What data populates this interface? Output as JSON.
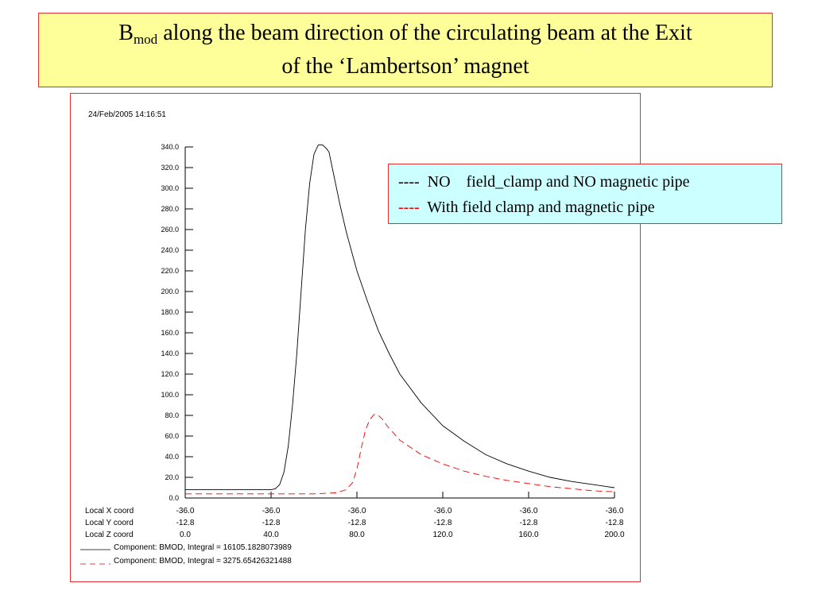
{
  "title": {
    "main_symbol": "B",
    "subscript": "mod",
    "line1_rest": " along the beam direction of the circulating beam at the Exit",
    "line2": "of the ‘Lambertson’ magnet"
  },
  "timestamp": "24/Feb/2005 14:16:51",
  "legend": {
    "items": [
      {
        "dash": "----",
        "label": "NO    field_clamp and NO magnetic pipe",
        "color": "#000000"
      },
      {
        "dash": "----",
        "label": "With field clamp and magnetic pipe",
        "color": "#ee0000"
      }
    ]
  },
  "coord_rows": [
    {
      "label": "Local X coord",
      "values": [
        "-36.0",
        "-36.0",
        "-36.0",
        "-36.0",
        "-36.0",
        "-36.0"
      ]
    },
    {
      "label": "Local Y coord",
      "values": [
        "-12.8",
        "-12.8",
        "-12.8",
        "-12.8",
        "-12.8",
        "-12.8"
      ]
    },
    {
      "label": "Local Z coord",
      "values": [
        "0.0",
        "40.0",
        "80.0",
        "120.0",
        "160.0",
        "200.0"
      ]
    }
  ],
  "component_labels": [
    "Component: BMOD, Integral = 16105.1828073989",
    "Component: BMOD, Integral = 3275.65426321488"
  ],
  "chart_data": {
    "type": "line",
    "title": "",
    "xlabel": "Local Z coord",
    "ylabel": "",
    "xlim": [
      0,
      200
    ],
    "ylim": [
      0,
      340
    ],
    "y_ticks": [
      "0.0",
      "20.0",
      "40.0",
      "60.0",
      "80.0",
      "100.0",
      "120.0",
      "140.0",
      "160.0",
      "180.0",
      "200.0",
      "220.0",
      "240.0",
      "260.0",
      "280.0",
      "300.0",
      "320.0",
      "340.0"
    ],
    "series": [
      {
        "name": "NO field_clamp and NO magnetic pipe",
        "color": "#000000",
        "dash": "solid",
        "x": [
          0,
          20,
          40,
          42,
          44,
          46,
          48,
          50,
          52,
          54,
          56,
          58,
          60,
          62,
          64,
          66,
          67,
          68,
          70,
          72,
          75,
          80,
          85,
          90,
          95,
          100,
          110,
          120,
          130,
          140,
          150,
          160,
          170,
          180,
          190,
          200
        ],
        "y": [
          8,
          8,
          8,
          9,
          13,
          25,
          50,
          90,
          140,
          200,
          260,
          305,
          333,
          342,
          342,
          338,
          335,
          325,
          305,
          285,
          258,
          220,
          190,
          162,
          140,
          120,
          92,
          70,
          55,
          42,
          33,
          26,
          20,
          16,
          13,
          10
        ]
      },
      {
        "name": "With field clamp and magnetic pipe",
        "color": "#ee0000",
        "dash": "dashed",
        "x": [
          0,
          40,
          60,
          70,
          75,
          78,
          80,
          82,
          84,
          86,
          88,
          90,
          92,
          94,
          100,
          110,
          120,
          130,
          140,
          150,
          160,
          170,
          180,
          190,
          200
        ],
        "y": [
          4,
          4,
          4,
          5,
          8,
          15,
          28,
          48,
          66,
          76,
          81,
          80,
          76,
          70,
          56,
          42,
          33,
          26,
          21,
          17,
          14,
          11,
          9,
          7,
          6
        ]
      }
    ]
  }
}
